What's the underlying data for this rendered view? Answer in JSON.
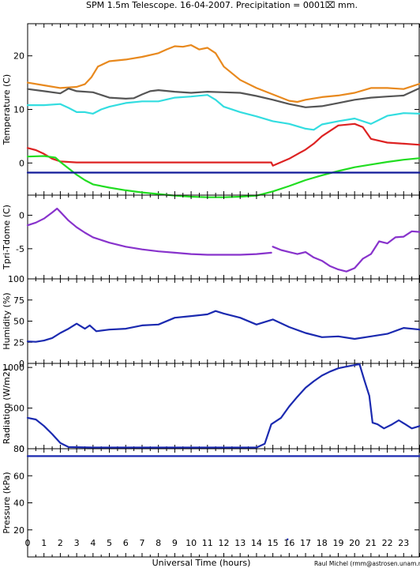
{
  "chart_data": {
    "type": "line",
    "title": "SPM 1.5m Telescope.  16-04-2007.  Precipitation = 0001⌧ mm.",
    "xlabel": "Universal Time (hours)",
    "credit": "Raul Michel (rmm@astrosen.unam.mx)",
    "xlim": [
      0,
      24
    ],
    "xticks": [
      "0",
      "1",
      "2",
      "3",
      "4",
      "5",
      "6",
      "7",
      "8",
      "9",
      "10",
      "11",
      "12",
      "13",
      "14",
      "15",
      "16",
      "17",
      "18",
      "19",
      "20",
      "21",
      "22",
      "23"
    ],
    "panels": [
      {
        "ylabel": "Temperature (C)",
        "ylim": [
          -6,
          26
        ],
        "yticks": [
          0,
          10,
          20
        ],
        "series": [
          {
            "color": "#e8891e",
            "x": [
              0,
              1,
              2,
              3,
              3.5,
              3.9,
              4.3,
              5,
              6,
              7,
              8,
              8.5,
              9,
              9.5,
              10,
              10.5,
              11,
              11.5,
              12,
              13,
              14,
              15,
              16,
              16.5,
              17,
              18,
              19,
              20,
              21,
              22,
              23,
              24
            ],
            "y": [
              15,
              14.5,
              14,
              14.2,
              14.7,
              16,
              18,
              19,
              19.3,
              19.8,
              20.5,
              21.2,
              21.8,
              21.7,
              22,
              21.2,
              21.5,
              20.5,
              18,
              15.5,
              14,
              12.8,
              11.6,
              11.4,
              11.8,
              12.3,
              12.6,
              13.1,
              14,
              14,
              13.8,
              14.8
            ]
          },
          {
            "color": "#555555",
            "x": [
              0,
              1,
              2,
              2.5,
              3,
              4,
              5,
              6,
              6.5,
              7,
              7.5,
              8,
              9,
              10,
              11,
              12,
              13,
              14,
              15,
              16,
              17,
              18,
              19,
              20,
              21,
              22,
              23,
              24
            ],
            "y": [
              13.8,
              13.4,
              13,
              13.9,
              13.4,
              13.2,
              12.2,
              12,
              12.1,
              12.8,
              13.4,
              13.6,
              13.3,
              13.1,
              13.3,
              13.2,
              13.1,
              12.5,
              11.8,
              11,
              10.4,
              10.6,
              11.2,
              11.8,
              12.2,
              12.4,
              12.6,
              14
            ]
          },
          {
            "color": "#33dde0",
            "x": [
              0,
              1,
              2,
              2.5,
              3,
              3.5,
              4,
              4.5,
              5,
              6,
              7,
              8,
              9,
              10,
              11,
              11.5,
              12,
              13,
              14,
              15,
              16,
              17,
              17.5,
              18,
              19,
              20,
              21,
              22,
              23,
              24
            ],
            "y": [
              10.8,
              10.8,
              11,
              10.3,
              9.5,
              9.5,
              9.2,
              10,
              10.5,
              11.2,
              11.5,
              11.5,
              12.2,
              12.4,
              12.7,
              11.8,
              10.5,
              9.5,
              8.7,
              7.8,
              7.3,
              6.4,
              6.2,
              7.2,
              7.8,
              8.3,
              7.3,
              8.8,
              9.3,
              9.2
            ]
          },
          {
            "color": "#dd2222",
            "x": [
              0,
              0.5,
              1,
              1.5,
              2,
              2.5,
              3,
              4,
              6,
              8,
              10,
              12,
              14,
              14.9,
              15,
              16,
              17,
              17.5,
              18,
              19,
              20,
              20.5,
              21,
              22,
              23,
              24
            ],
            "y": [
              2.8,
              2.4,
              1.7,
              0.8,
              0.3,
              0.2,
              0.1,
              0.1,
              0.1,
              0.1,
              0.1,
              0.1,
              0.1,
              0.1,
              -0.5,
              0.8,
              2.5,
              3.6,
              5,
              7,
              7.3,
              6.7,
              4.5,
              3.8,
              3.6,
              3.4
            ]
          },
          {
            "color": "#22dd22",
            "x": [
              0,
              1,
              1.7,
              2,
              2.5,
              3,
              3.5,
              4,
              5,
              6,
              7,
              8,
              9,
              10,
              11,
              12,
              13,
              14,
              15,
              16,
              17,
              18,
              19,
              20,
              21,
              22,
              23,
              24
            ],
            "y": [
              1.2,
              1.3,
              1,
              0.2,
              -1,
              -2.2,
              -3.2,
              -4,
              -4.6,
              -5.1,
              -5.5,
              -5.8,
              -6.1,
              -6.3,
              -6.4,
              -6.4,
              -6.3,
              -6.1,
              -5.3,
              -4.3,
              -3.2,
              -2.3,
              -1.5,
              -0.8,
              -0.3,
              0.2,
              0.6,
              0.9
            ]
          },
          {
            "color": "#111a99",
            "x": [
              0,
              24
            ],
            "y": [
              -1.8,
              -1.8
            ]
          }
        ]
      },
      {
        "ylabel": "Tpri-Tdome (C)",
        "ylim": [
          -9.5,
          3
        ],
        "yticks": [
          -5,
          0
        ],
        "series": [
          {
            "color": "#8833cc",
            "x": [
              0,
              0.5,
              1,
              1.5,
              1.8,
              2,
              2.5,
              3,
              3.5,
              4,
              5,
              6,
              7,
              8,
              9,
              10,
              11,
              12,
              13,
              14,
              14.9
            ],
            "y": [
              -1.5,
              -1.1,
              -0.5,
              0.4,
              1,
              0.5,
              -0.8,
              -1.8,
              -2.6,
              -3.3,
              -4.1,
              -4.7,
              -5.1,
              -5.4,
              -5.6,
              -5.8,
              -5.9,
              -5.9,
              -5.9,
              -5.8,
              -5.6
            ]
          },
          {
            "color": "#8833cc",
            "x": [
              15,
              15.5,
              16,
              16.5,
              17,
              17.5,
              18,
              18.5,
              19,
              19.5,
              20,
              20.5,
              21,
              21.5,
              22,
              22.5,
              23,
              23.5,
              24
            ],
            "y": [
              -4.7,
              -5.2,
              -5.5,
              -5.8,
              -5.5,
              -6.3,
              -6.8,
              -7.6,
              -8.1,
              -8.4,
              -7.9,
              -6.5,
              -5.8,
              -3.9,
              -4.2,
              -3.3,
              -3.2,
              -2.4,
              -2.5
            ]
          }
        ]
      },
      {
        "ylabel": "Humidity (%)",
        "ylim": [
          0,
          100
        ],
        "yticks": [
          0,
          25,
          50,
          75,
          100
        ],
        "series": [
          {
            "color": "#1b2ab0",
            "x": [
              0,
              0.5,
              1,
              1.5,
              2,
              2.5,
              3,
              3.5,
              3.8,
              4.2,
              5,
              6,
              7,
              8,
              9,
              10,
              11,
              11.5,
              12,
              13,
              14,
              15,
              16,
              17,
              18,
              19,
              20,
              21,
              22,
              23,
              24
            ],
            "y": [
              26,
              25.5,
              27,
              30,
              36,
              41,
              47,
              41,
              45,
              38,
              40,
              41,
              45,
              46,
              54,
              56,
              58,
              62,
              59,
              54,
              46,
              52,
              43,
              36,
              31,
              32,
              29,
              32,
              35,
              42,
              40
            ]
          }
        ]
      },
      {
        "ylabel": "Radiation (W/m2)",
        "ylim": [
          0,
          1050
        ],
        "yticks": [
          0,
          500,
          1000
        ],
        "series": [
          {
            "color": "#1b2ab0",
            "x": [
              0,
              0.5,
              1,
              1.5,
              2,
              2.5,
              4,
              6,
              8,
              10,
              12,
              13,
              14,
              14.5,
              14.9,
              15.5,
              16,
              16.5,
              17,
              17.5,
              18,
              18.5,
              19,
              19.5,
              20,
              20.3,
              20.6,
              20.9,
              21.1,
              21.4,
              21.8,
              22.3,
              22.7,
              23.1,
              23.5,
              24
            ],
            "y": [
              380,
              360,
              280,
              180,
              70,
              20,
              15,
              15,
              15,
              15,
              15,
              15,
              15,
              60,
              300,
              380,
              520,
              640,
              750,
              830,
              900,
              950,
              990,
              1010,
              1030,
              1040,
              840,
              650,
              320,
              300,
              250,
              300,
              350,
              300,
              250,
              280
            ]
          }
        ]
      },
      {
        "ylabel": "Pressure (kPa)",
        "ylim": [
          0,
          80
        ],
        "yticks": [
          20,
          40,
          60,
          80
        ],
        "series": [
          {
            "color": "#1b2ab0",
            "x": [
              0,
              24
            ],
            "y": [
              74.5,
              74.5
            ]
          }
        ],
        "outliers": [
          {
            "x": 15.9,
            "y": 13
          }
        ]
      }
    ]
  }
}
